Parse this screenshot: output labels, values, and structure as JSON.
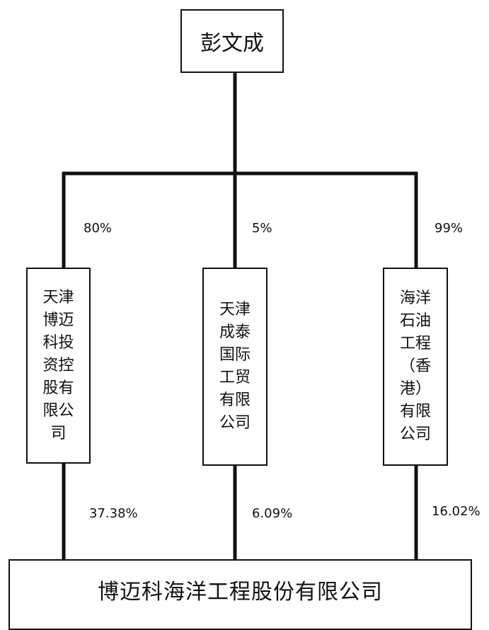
{
  "diagram": {
    "top_node": {
      "label": "彭文成"
    },
    "middle_nodes": [
      {
        "label": "天津博迈科投资控股有限公司",
        "owner_share": "80%",
        "holding_share": "37.38%"
      },
      {
        "label": "天津成泰国际工贸有限公司",
        "owner_share": "5%",
        "holding_share": "6.09%"
      },
      {
        "label": "海洋石油工程（香港）有限公司",
        "owner_share": "99%",
        "holding_share": "16.02%"
      }
    ],
    "bottom_node": {
      "label": "博迈科海洋工程股份有限公司"
    },
    "colors": {
      "line": "#111111",
      "box_border": "#111111",
      "background": "#ffffff"
    }
  }
}
